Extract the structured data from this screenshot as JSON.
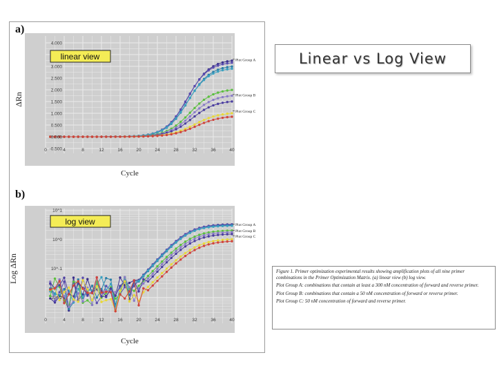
{
  "slide_title": "Linear vs Log View",
  "panel_a_letter": "a)",
  "panel_b_letter": "b)",
  "caption": [
    "Figure 1. Primer optimization experimental results showing amplification plots of all nine primer combinations in the Primer Optimization Matrix. (a) linear view (b) log view.",
    "Plot Group A: combinations that contain at least a 300 nM concentration of forward and reverse primer.",
    "Plot Group B: combinations that contain a 50 nM concentration of forward or reverse primer.",
    "Plot Group C: 50 nM concentration of forward and reverse primer."
  ],
  "colors": {
    "plot_bg": "#cfcfcf",
    "grid": "#ebebeb",
    "label_box": "#f4ec56",
    "series": [
      "#3a2f8c",
      "#5a4cb0",
      "#2a7fa8",
      "#3aa0c0",
      "#5bbf3f",
      "#8a7cc8",
      "#4b3ea0",
      "#e8d83a",
      "#d0443c"
    ]
  },
  "chart_data": [
    {
      "type": "line",
      "label_text": "linear view",
      "xlabel": "Cycle",
      "ylabel": "ΔRn",
      "x": [
        0,
        4,
        8,
        12,
        16,
        20,
        24,
        28,
        32,
        36,
        40
      ],
      "xticks": [
        "0",
        "4",
        "8",
        "12",
        "16",
        "20",
        "24",
        "28",
        "32",
        "36",
        "40"
      ],
      "yticks": [
        "4.000",
        "3.500",
        "3.000",
        "2.500",
        "2.000",
        "1.500",
        "1.000",
        "0.500",
        "0.000",
        "-0.500"
      ],
      "ylim": [
        -0.5,
        4.0
      ],
      "grid": true,
      "group_labels": [
        "Plot Group A",
        "Plot Group B",
        "Plot Group C"
      ],
      "series": [
        {
          "plateau": 3.3,
          "midpoint": 30.5,
          "slope": 0.42
        },
        {
          "plateau": 3.2,
          "midpoint": 30.3,
          "slope": 0.43
        },
        {
          "plateau": 3.05,
          "midpoint": 30.6,
          "slope": 0.42
        },
        {
          "plateau": 2.95,
          "midpoint": 30.4,
          "slope": 0.42
        },
        {
          "plateau": 2.05,
          "midpoint": 31.0,
          "slope": 0.4
        },
        {
          "plateau": 1.8,
          "midpoint": 31.2,
          "slope": 0.4
        },
        {
          "plateau": 1.55,
          "midpoint": 31.4,
          "slope": 0.4
        },
        {
          "plateau": 1.05,
          "midpoint": 32.0,
          "slope": 0.38
        },
        {
          "plateau": 0.9,
          "midpoint": 32.3,
          "slope": 0.38
        }
      ]
    },
    {
      "type": "line",
      "label_text": "log view",
      "xlabel": "Cycle",
      "ylabel": "Log ΔRn",
      "x": [
        0,
        4,
        8,
        12,
        16,
        20,
        24,
        28,
        32,
        36,
        40
      ],
      "xticks": [
        "0",
        "4",
        "8",
        "12",
        "16",
        "20",
        "24",
        "28",
        "32",
        "36",
        "40"
      ],
      "yticks": [
        "10^1",
        "10^0",
        "10^-1",
        "10^-2"
      ],
      "ylim": [
        -2.7,
        1.1
      ],
      "log_scale": true,
      "grid": true,
      "group_labels": [
        "Plot Group A",
        "Plot Group B",
        "Plot Group C"
      ]
    }
  ]
}
